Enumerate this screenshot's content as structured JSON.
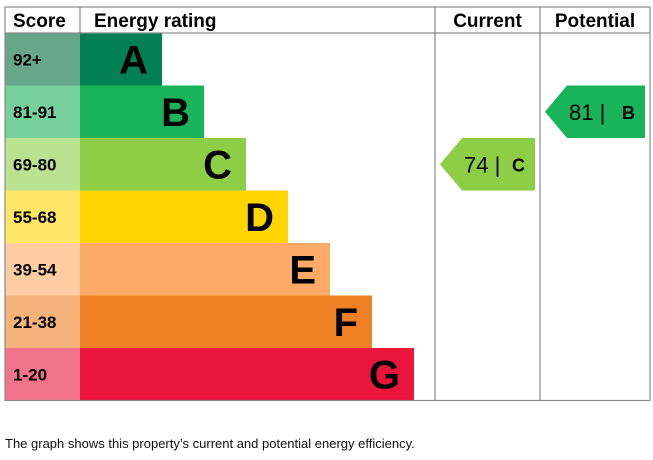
{
  "chart_data": {
    "type": "bar",
    "headers": {
      "score": "Score",
      "rating": "Energy rating",
      "current": "Current",
      "potential": "Potential"
    },
    "bands": [
      {
        "range": "92+",
        "letter": "A",
        "color": "#008054",
        "score_color": "#66a68b"
      },
      {
        "range": "81-91",
        "letter": "B",
        "color": "#19b459",
        "score_color": "#75d09b"
      },
      {
        "range": "69-80",
        "letter": "C",
        "color": "#8dce46",
        "score_color": "#bbe290"
      },
      {
        "range": "55-68",
        "letter": "D",
        "color": "#ffd500",
        "score_color": "#ffe566"
      },
      {
        "range": "39-54",
        "letter": "E",
        "color": "#fcaa65",
        "score_color": "#fdcca3"
      },
      {
        "range": "21-38",
        "letter": "F",
        "color": "#ef8023",
        "score_color": "#f5b37b"
      },
      {
        "range": "1-20",
        "letter": "G",
        "color": "#e9153b",
        "score_color": "#f27389"
      }
    ],
    "current": {
      "value": 74,
      "letter": "C",
      "label": "74 |",
      "color": "#8dce46"
    },
    "potential": {
      "value": 81,
      "letter": "B",
      "label": "81 |",
      "color": "#19b459"
    }
  },
  "caption": "The graph shows this property’s current and potential energy efficiency."
}
